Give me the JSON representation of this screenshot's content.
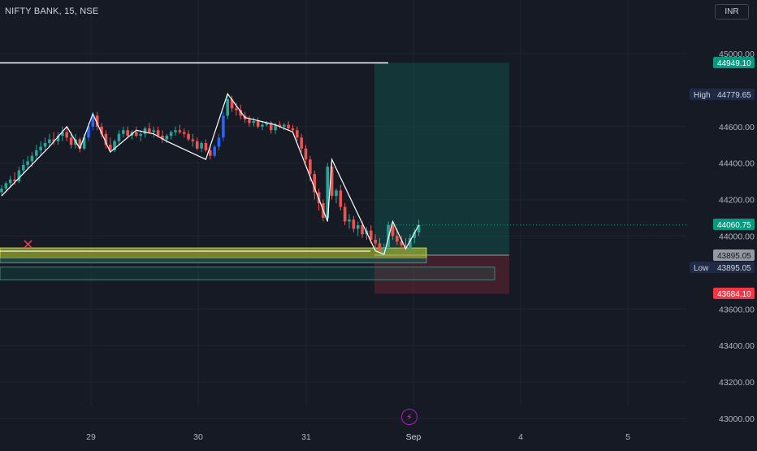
{
  "header": {
    "symbol_title": "NIFTY BANK, 15, NSE",
    "currency": "INR"
  },
  "colors": {
    "background": "#161a25",
    "grid": "#1f2430",
    "up": "#26a69a",
    "down": "#ef5350",
    "wave": "#ffffff",
    "impulse_up": "#2962ff",
    "zone": "#c8d832",
    "target": "#089981",
    "stop": "#f23645",
    "event": "#9c27b0"
  },
  "price_scale": {
    "ticks": [
      "45000.00",
      "44600.00",
      "44400.00",
      "44200.00",
      "44000.00",
      "43600.00",
      "43400.00",
      "43200.00",
      "43000.00"
    ],
    "labels": [
      {
        "name": "resistance",
        "prefix": "",
        "value": "44949.10",
        "bg": "#089981",
        "fg": "#ffffff"
      },
      {
        "name": "high",
        "prefix": "High",
        "value": "44779.65",
        "bg": "#1e2a46",
        "fg": "#d1d4dc"
      },
      {
        "name": "last-price",
        "prefix": "",
        "value": "44060.75",
        "bg": "#089981",
        "fg": "#ffffff"
      },
      {
        "name": "entry",
        "prefix": "",
        "value": "43895.05",
        "bg": "#9598a1",
        "fg": "#131722"
      },
      {
        "name": "low",
        "prefix": "Low",
        "value": "43895.05",
        "bg": "#1e2a46",
        "fg": "#d1d4dc"
      },
      {
        "name": "stop",
        "prefix": "",
        "value": "43684.10",
        "bg": "#f23645",
        "fg": "#ffffff"
      }
    ]
  },
  "time_scale": {
    "ticks": [
      "29",
      "30",
      "31",
      "Sep",
      "4",
      "5"
    ]
  },
  "chart_data": {
    "type": "candlestick",
    "y_axis": {
      "range": [
        42950,
        45140
      ],
      "ticks": [
        45000,
        44600,
        44400,
        44200,
        44000,
        43600,
        43400,
        43200,
        43000
      ]
    },
    "x_axis_ticks": [
      "29",
      "30",
      "31",
      "Sep",
      "4",
      "5"
    ],
    "candles": [
      [
        44240,
        44280,
        44220,
        44260
      ],
      [
        44260,
        44300,
        44240,
        44290
      ],
      [
        44290,
        44330,
        44270,
        44310
      ],
      [
        44310,
        44350,
        44280,
        44300
      ],
      [
        44300,
        44380,
        44290,
        44360
      ],
      [
        44360,
        44420,
        44340,
        44390
      ],
      [
        44390,
        44440,
        44370,
        44410
      ],
      [
        44410,
        44460,
        44380,
        44440
      ],
      [
        44440,
        44500,
        44420,
        44470
      ],
      [
        44470,
        44520,
        44440,
        44490
      ],
      [
        44490,
        44540,
        44470,
        44510
      ],
      [
        44510,
        44560,
        44490,
        44530
      ],
      [
        44530,
        44570,
        44500,
        44520
      ],
      [
        44520,
        44570,
        44500,
        44550
      ],
      [
        44550,
        44600,
        44520,
        44570
      ],
      [
        44570,
        44600,
        44520,
        44540
      ],
      [
        44540,
        44570,
        44480,
        44500
      ],
      [
        44500,
        44560,
        44480,
        44530
      ],
      [
        44530,
        44540,
        44460,
        44480
      ],
      [
        44480,
        44560,
        44470,
        44540
      ],
      [
        44540,
        44620,
        44520,
        44600
      ],
      [
        44600,
        44680,
        44580,
        44660
      ],
      [
        44660,
        44680,
        44580,
        44600
      ],
      [
        44600,
        44620,
        44540,
        44560
      ],
      [
        44560,
        44580,
        44480,
        44500
      ],
      [
        44500,
        44540,
        44460,
        44470
      ],
      [
        44470,
        44530,
        44460,
        44520
      ],
      [
        44520,
        44580,
        44500,
        44560
      ],
      [
        44560,
        44600,
        44540,
        44580
      ],
      [
        44580,
        44600,
        44540,
        44550
      ],
      [
        44550,
        44580,
        44530,
        44570
      ],
      [
        44570,
        44600,
        44540,
        44550
      ],
      [
        44550,
        44580,
        44520,
        44560
      ],
      [
        44560,
        44600,
        44540,
        44590
      ],
      [
        44590,
        44620,
        44560,
        44570
      ],
      [
        44570,
        44600,
        44540,
        44580
      ],
      [
        44580,
        44600,
        44540,
        44550
      ],
      [
        44550,
        44580,
        44510,
        44530
      ],
      [
        44530,
        44560,
        44510,
        44550
      ],
      [
        44550,
        44580,
        44530,
        44570
      ],
      [
        44570,
        44600,
        44550,
        44580
      ],
      [
        44580,
        44610,
        44560,
        44570
      ],
      [
        44570,
        44590,
        44540,
        44560
      ],
      [
        44560,
        44580,
        44520,
        44530
      ],
      [
        44530,
        44560,
        44490,
        44520
      ],
      [
        44520,
        44540,
        44470,
        44480
      ],
      [
        44480,
        44520,
        44460,
        44510
      ],
      [
        44510,
        44530,
        44460,
        44470
      ],
      [
        44470,
        44500,
        44420,
        44440
      ],
      [
        44440,
        44500,
        44430,
        44490
      ],
      [
        44490,
        44560,
        44470,
        44540
      ],
      [
        44540,
        44680,
        44520,
        44660
      ],
      [
        44660,
        44780,
        44640,
        44750
      ],
      [
        44750,
        44770,
        44680,
        44700
      ],
      [
        44700,
        44730,
        44660,
        44690
      ],
      [
        44690,
        44720,
        44640,
        44660
      ],
      [
        44660,
        44680,
        44620,
        44640
      ],
      [
        44640,
        44660,
        44600,
        44620
      ],
      [
        44620,
        44650,
        44600,
        44630
      ],
      [
        44630,
        44650,
        44590,
        44600
      ],
      [
        44600,
        44630,
        44580,
        44610
      ],
      [
        44610,
        44630,
        44600,
        44620
      ],
      [
        44620,
        44630,
        44560,
        44580
      ],
      [
        44580,
        44620,
        44560,
        44610
      ],
      [
        44610,
        44630,
        44590,
        44600
      ],
      [
        44600,
        44620,
        44580,
        44610
      ],
      [
        44610,
        44630,
        44580,
        44590
      ],
      [
        44590,
        44610,
        44570,
        44580
      ],
      [
        44580,
        44600,
        44520,
        44540
      ],
      [
        44540,
        44560,
        44460,
        44480
      ],
      [
        44480,
        44500,
        44400,
        44420
      ],
      [
        44420,
        44440,
        44300,
        44340
      ],
      [
        44340,
        44360,
        44200,
        44240
      ],
      [
        44240,
        44260,
        44140,
        44180
      ],
      [
        44180,
        44200,
        44080,
        44100
      ],
      [
        44100,
        44400,
        44080,
        44380
      ],
      [
        44380,
        44400,
        44200,
        44220
      ],
      [
        44220,
        44260,
        44180,
        44250
      ],
      [
        44250,
        44280,
        44140,
        44160
      ],
      [
        44160,
        44180,
        44060,
        44080
      ],
      [
        44080,
        44120,
        44040,
        44090
      ],
      [
        44090,
        44110,
        44020,
        44040
      ],
      [
        44040,
        44080,
        44000,
        44060
      ],
      [
        44060,
        44080,
        43990,
        44010
      ],
      [
        44010,
        44050,
        43980,
        44030
      ],
      [
        44030,
        44060,
        43960,
        43980
      ],
      [
        43980,
        44010,
        43930,
        43960
      ],
      [
        43960,
        43990,
        43900,
        43920
      ],
      [
        43920,
        43960,
        43890,
        43940
      ],
      [
        43940,
        44080,
        43920,
        44060
      ],
      [
        44060,
        44080,
        43980,
        44000
      ],
      [
        44000,
        44040,
        43950,
        43970
      ],
      [
        43970,
        44000,
        43930,
        43950
      ],
      [
        43950,
        43990,
        43900,
        43930
      ],
      [
        43930,
        44010,
        43920,
        43990
      ],
      [
        43990,
        44040,
        43960,
        44020
      ],
      [
        44020,
        44090,
        44000,
        44060
      ]
    ],
    "wave_path": [
      [
        0,
        44220
      ],
      [
        11,
        44490
      ],
      [
        15,
        44600
      ],
      [
        18,
        44480
      ],
      [
        21,
        44670
      ],
      [
        25,
        44460
      ],
      [
        31,
        44580
      ],
      [
        35,
        44560
      ],
      [
        38,
        44520
      ],
      [
        47,
        44420
      ],
      [
        52,
        44780
      ],
      [
        56,
        44650
      ],
      [
        63,
        44610
      ],
      [
        67,
        44570
      ],
      [
        75,
        44080
      ],
      [
        76,
        44420
      ],
      [
        86,
        43920
      ],
      [
        88,
        43900
      ],
      [
        90,
        44080
      ],
      [
        93,
        43930
      ],
      [
        96,
        44060
      ]
    ],
    "resistance_level": 44949.1,
    "high": 44779.65,
    "low": 43895.05,
    "last_price": 44060.75,
    "position": {
      "entry": 43895.05,
      "target": 44949.1,
      "stop": 43684.1
    },
    "zones": [
      {
        "name": "demand-zone",
        "top": 43935,
        "bottom": 43880
      },
      {
        "name": "lower-zone",
        "top": 43830,
        "bottom": 43760
      }
    ]
  }
}
